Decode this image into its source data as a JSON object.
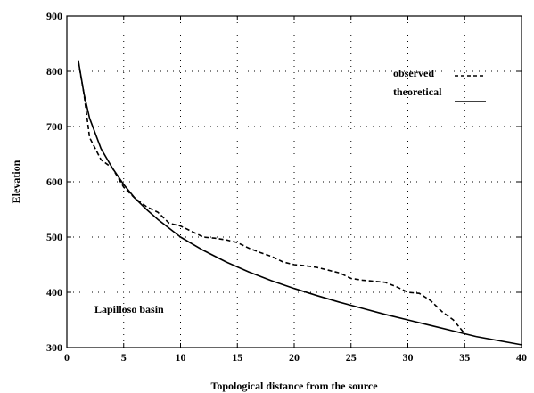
{
  "chart_data": {
    "type": "line",
    "xlabel": "Topological distance from the source",
    "ylabel": "Elevation",
    "xlim": [
      0,
      40
    ],
    "ylim": [
      300,
      900
    ],
    "xticks": [
      0,
      5,
      10,
      15,
      20,
      25,
      30,
      35,
      40
    ],
    "yticks": [
      300,
      400,
      500,
      600,
      700,
      800,
      900
    ],
    "grid": "dotted",
    "legend_position": "top-right",
    "annotation": "Lapilloso basin",
    "series": [
      {
        "name": "observed",
        "style": "dashed",
        "x": [
          1,
          1.5,
          2,
          3,
          4,
          5,
          6,
          7,
          8,
          9,
          10,
          11,
          12,
          13,
          14,
          15,
          16,
          17,
          18,
          19,
          20,
          21,
          22,
          23,
          24,
          25,
          26,
          27,
          28,
          29,
          30,
          31,
          32,
          33,
          34,
          35
        ],
        "y": [
          818,
          760,
          680,
          640,
          625,
          590,
          570,
          555,
          545,
          525,
          520,
          510,
          500,
          498,
          495,
          490,
          480,
          472,
          465,
          455,
          450,
          448,
          445,
          440,
          435,
          425,
          422,
          420,
          418,
          410,
          400,
          398,
          385,
          365,
          350,
          325
        ]
      },
      {
        "name": "theoretical",
        "style": "solid",
        "x": [
          1,
          1.5,
          2,
          3,
          4,
          5,
          6,
          7,
          8,
          9,
          10,
          12,
          14,
          16,
          18,
          20,
          22,
          24,
          26,
          28,
          30,
          32,
          34,
          36
        ],
        "y": [
          820,
          760,
          715,
          660,
          625,
          595,
          570,
          550,
          532,
          516,
          500,
          476,
          455,
          437,
          421,
          407,
          394,
          382,
          371,
          360,
          350,
          340,
          330,
          320
        ]
      }
    ],
    "extra_segment": {
      "x": [
        36,
        40
      ],
      "y": [
        320,
        305
      ]
    }
  }
}
